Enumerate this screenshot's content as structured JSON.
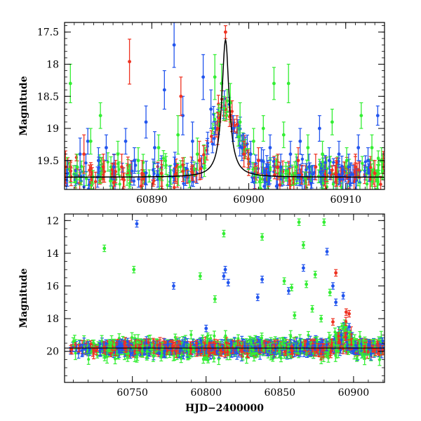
{
  "chart_data": [
    {
      "type": "scatter",
      "panel": "top",
      "ylabel": "Magnitude",
      "xlabel": "",
      "xlim": [
        60881,
        60914
      ],
      "ylim": [
        19.95,
        17.35
      ],
      "y_inverted": true,
      "x_ticks": [
        60890,
        60900,
        60910
      ],
      "y_ticks": [
        17.5,
        18,
        18.5,
        19,
        19.5
      ],
      "model_curve": {
        "description": "black",
        "peak_x": 60897.6,
        "peak_y": 17.62,
        "baseline_y": 19.76
      },
      "series": [
        {
          "color": "#2255ee",
          "points": [
            [
              60881.3,
              19.7,
              0.2
            ],
            [
              60882.6,
              19.4,
              0.25
            ],
            [
              60883.4,
              19.2,
              0.2
            ],
            [
              60884.5,
              19.5,
              0.2
            ],
            [
              60885.3,
              19.3,
              0.2
            ],
            [
              60886.1,
              19.6,
              0.2
            ],
            [
              60887.3,
              19.2,
              0.2
            ],
            [
              60888.2,
              19.5,
              0.2
            ],
            [
              60889.4,
              18.9,
              0.25
            ],
            [
              60890.3,
              19.3,
              0.25
            ],
            [
              60891.3,
              18.4,
              0.3
            ],
            [
              60892.3,
              17.7,
              0.35
            ],
            [
              60893.2,
              18.8,
              0.3
            ],
            [
              60894.2,
              19.2,
              0.3
            ],
            [
              60895.3,
              18.2,
              0.35
            ],
            [
              60896.1,
              18.7,
              0.3
            ],
            [
              60898.4,
              19.0,
              0.2
            ],
            [
              60899.3,
              19.3,
              0.2
            ],
            [
              60900.2,
              19.4,
              0.2
            ],
            [
              60901.3,
              19.5,
              0.2
            ],
            [
              60902.2,
              19.3,
              0.2
            ],
            [
              60903.3,
              19.6,
              0.2
            ],
            [
              60904.3,
              19.4,
              0.2
            ],
            [
              60905.3,
              19.2,
              0.2
            ],
            [
              60906.2,
              19.6,
              0.2
            ],
            [
              60907.3,
              19.0,
              0.2
            ],
            [
              60908.3,
              19.5,
              0.2
            ],
            [
              60909.3,
              19.4,
              0.2
            ],
            [
              60910.3,
              19.6,
              0.2
            ],
            [
              60911.3,
              19.3,
              0.2
            ],
            [
              60912.3,
              19.5,
              0.2
            ],
            [
              60913.3,
              18.8,
              0.15
            ]
          ]
        },
        {
          "color": "#33ee33",
          "points": [
            [
              60881.6,
              18.3,
              0.3
            ],
            [
              60882.3,
              19.6,
              0.2
            ],
            [
              60883.7,
              19.2,
              0.2
            ],
            [
              60884.7,
              18.8,
              0.2
            ],
            [
              60886.5,
              19.4,
              0.2
            ],
            [
              60888.6,
              19.5,
              0.2
            ],
            [
              60890.7,
              19.3,
              0.2
            ],
            [
              60892.7,
              19.1,
              0.3
            ],
            [
              60894.7,
              19.4,
              0.25
            ],
            [
              60896.5,
              18.2,
              0.35
            ],
            [
              60897.2,
              18.3,
              0.3
            ],
            [
              60898.1,
              18.6,
              0.3
            ],
            [
              60899.1,
              18.9,
              0.3
            ],
            [
              60900.5,
              19.2,
              0.2
            ],
            [
              60901.5,
              19.0,
              0.2
            ],
            [
              60902.6,
              18.3,
              0.25
            ],
            [
              60903.6,
              19.1,
              0.2
            ],
            [
              60904.1,
              18.3,
              0.3
            ],
            [
              60904.9,
              19.6,
              0.2
            ],
            [
              60906.1,
              19.3,
              0.2
            ],
            [
              60907.6,
              19.4,
              0.2
            ],
            [
              60908.6,
              18.9,
              0.2
            ],
            [
              60910.1,
              19.5,
              0.2
            ],
            [
              60911.6,
              18.8,
              0.2
            ],
            [
              60912.7,
              19.3,
              0.2
            ],
            [
              60913.7,
              19.5,
              0.2
            ]
          ]
        },
        {
          "color": "#ee3322",
          "points": [
            [
              60881.1,
              19.6,
              0.25
            ],
            [
              60883.0,
              19.4,
              0.3
            ],
            [
              60885.0,
              19.6,
              0.2
            ],
            [
              60886.9,
              19.6,
              0.2
            ],
            [
              60887.7,
              17.96,
              0.35
            ],
            [
              60889.0,
              19.7,
              0.2
            ],
            [
              60891.0,
              19.7,
              0.2
            ],
            [
              60893.0,
              18.5,
              0.3
            ],
            [
              60894.9,
              19.5,
              0.3
            ],
            [
              60896.8,
              19.0,
              0.25
            ],
            [
              60897.6,
              17.5,
              0.1
            ],
            [
              60899.5,
              19.4,
              0.2
            ],
            [
              60901.0,
              19.5,
              0.2
            ],
            [
              60903.0,
              19.6,
              0.2
            ],
            [
              60905.1,
              19.5,
              0.2
            ],
            [
              60906.9,
              19.6,
              0.2
            ],
            [
              60909.0,
              19.7,
              0.2
            ],
            [
              60911.0,
              19.6,
              0.2
            ],
            [
              60913.0,
              19.7,
              0.2
            ]
          ]
        }
      ]
    },
    {
      "type": "scatter",
      "panel": "bottom",
      "ylabel": "Magnitude",
      "xlabel": "HJD−2400000",
      "xlim": [
        60704,
        60921
      ],
      "ylim": [
        21.9,
        11.6
      ],
      "y_inverted": true,
      "x_ticks": [
        60750,
        60800,
        60850,
        60900
      ],
      "y_ticks": [
        12,
        14,
        16,
        18,
        20
      ],
      "baseline_y": 19.8,
      "series": [
        {
          "color": "#2255ee",
          "points": [
            [
              60753,
              12.2
            ],
            [
              60778,
              16.0
            ],
            [
              60812,
              15.4
            ],
            [
              60813,
              15.0
            ],
            [
              60815,
              15.8
            ],
            [
              60835,
              16.7
            ],
            [
              60838,
              15.6
            ],
            [
              60856,
              16.3
            ],
            [
              60866,
              14.9
            ],
            [
              60882,
              13.9
            ],
            [
              60886,
              16.0
            ],
            [
              60888,
              17.0
            ],
            [
              60893,
              16.6
            ],
            [
              60897,
              18.5
            ],
            [
              60800,
              18.6
            ]
          ]
        },
        {
          "color": "#33ee33",
          "points": [
            [
              60731,
              13.7
            ],
            [
              60751,
              15.0
            ],
            [
              60796,
              15.4
            ],
            [
              60806,
              16.8
            ],
            [
              60812,
              12.8
            ],
            [
              60838,
              13.0
            ],
            [
              60853,
              15.7
            ],
            [
              60858,
              16.1
            ],
            [
              60863,
              12.1
            ],
            [
              60866,
              13.5
            ],
            [
              60868,
              15.9
            ],
            [
              60872,
              17.4
            ],
            [
              60874,
              15.3
            ],
            [
              60880,
              12.1
            ],
            [
              60884,
              16.4
            ],
            [
              60860,
              17.8
            ],
            [
              60878,
              18.0
            ]
          ]
        },
        {
          "color": "#ee3322",
          "points": [
            [
              60888,
              15.2
            ],
            [
              60895,
              17.6
            ],
            [
              60897,
              17.7
            ],
            [
              60886,
              18.2
            ]
          ]
        }
      ]
    }
  ]
}
